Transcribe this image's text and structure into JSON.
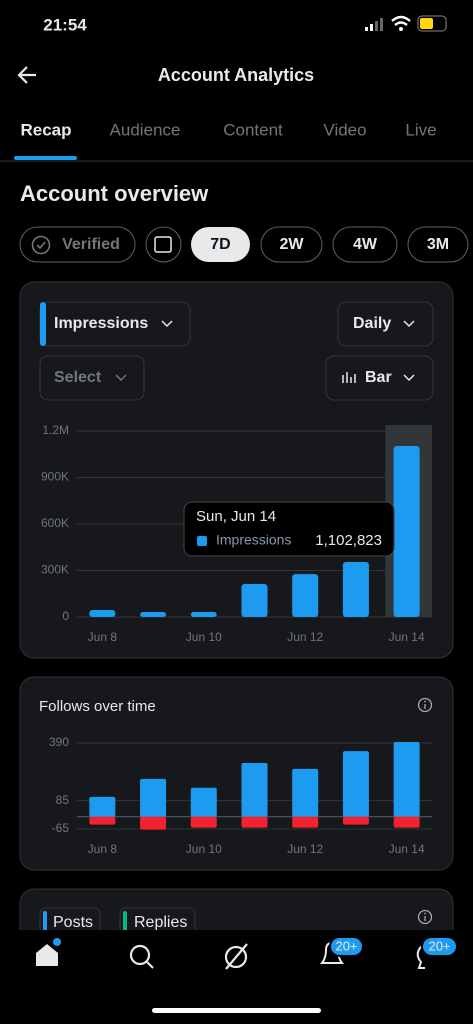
{
  "status": {
    "time": "21:54"
  },
  "header": {
    "title": "Account Analytics"
  },
  "tabs": [
    "Recap",
    "Audience",
    "Content",
    "Video",
    "Live"
  ],
  "section_title": "Account overview",
  "chips": [
    "Verified",
    "7D",
    "2W",
    "4W",
    "3M"
  ],
  "controls": {
    "metric": "Impressions",
    "interval": "Daily",
    "select": "Select",
    "chart_type": "Bar"
  },
  "chart_data": [
    {
      "type": "bar",
      "categories": [
        "Jun 8",
        null,
        "Jun 10",
        null,
        "Jun 12",
        null,
        "Jun 14"
      ],
      "series": [
        {
          "name": "Impressions",
          "color": "#1d9bf0",
          "values": [
            45000,
            32000,
            32000,
            213000,
            277000,
            355000,
            1102823
          ]
        }
      ],
      "ylim": [
        0,
        1200000
      ],
      "yticks": [
        0,
        {
          "value": 300000,
          "label": "300K"
        },
        {
          "value": 600000,
          "label": "600K"
        },
        {
          "value": 900000,
          "label": "900K"
        },
        {
          "value": 1200000,
          "label": "1.2M"
        }
      ],
      "grid": true,
      "tooltip": {
        "title": "Sun, Jun 14",
        "value_label": "1,102,823"
      }
    },
    {
      "type": "stacked_bar",
      "title": "Follows over time",
      "categories": [
        "Jun 8",
        null,
        "Jun 10",
        null,
        "Jun 12",
        null,
        "Jun 14"
      ],
      "series": [
        {
          "color": "#1d9bf0",
          "values": [
            105,
            200,
            153,
            284,
            253,
            347,
            395
          ]
        },
        {
          "color": "#f4212e",
          "values": [
            -42,
            -68,
            -58,
            -58,
            -58,
            -42,
            -58
          ]
        }
      ],
      "ylim": [
        -80,
        400
      ],
      "yticks": [
        -65,
        85,
        390
      ],
      "grid": true
    }
  ],
  "next_card": {
    "legend": [
      "Posts",
      "Replies"
    ]
  },
  "nav": {
    "badges": [
      "20+",
      "20+"
    ]
  }
}
